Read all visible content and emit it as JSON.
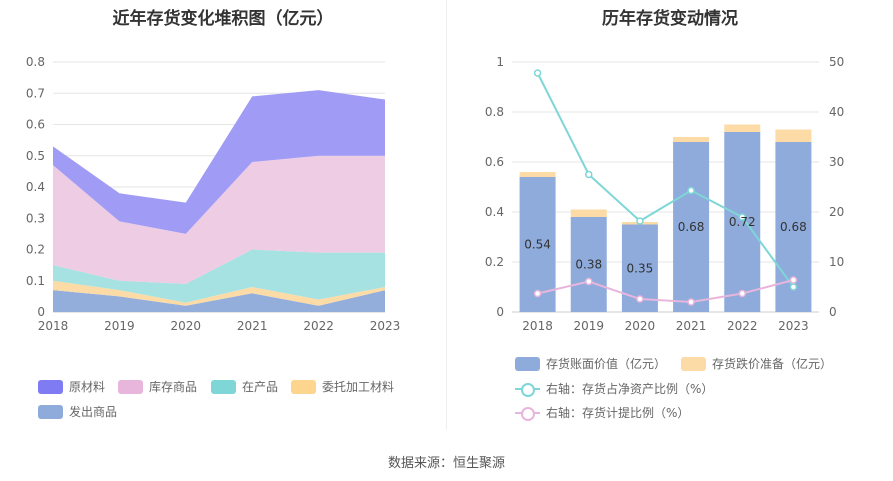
{
  "source_text": "数据来源：恒生聚源",
  "chart_data": [
    {
      "type": "area",
      "stacked": true,
      "title": "近年存货变化堆积图（亿元）",
      "categories": [
        "2018",
        "2019",
        "2020",
        "2021",
        "2022",
        "2023"
      ],
      "ylim": [
        0,
        0.8
      ],
      "yticks": [
        "0",
        "0.1",
        "0.2",
        "0.3",
        "0.4",
        "0.5",
        "0.6",
        "0.7",
        "0.8"
      ],
      "grid": true,
      "legend_position": "bottom",
      "series": [
        {
          "name": "发出商品",
          "color": "#94aedc",
          "values": [
            0.07,
            0.05,
            0.02,
            0.06,
            0.02,
            0.07
          ]
        },
        {
          "name": "委托加工材料",
          "color": "#fcdba6",
          "values": [
            0.03,
            0.02,
            0.01,
            0.02,
            0.02,
            0.01
          ]
        },
        {
          "name": "在产品",
          "color": "#a6e2e2",
          "values": [
            0.05,
            0.03,
            0.06,
            0.12,
            0.15,
            0.11
          ]
        },
        {
          "name": "库存商品",
          "color": "#eecce3",
          "values": [
            0.32,
            0.19,
            0.16,
            0.28,
            0.31,
            0.31
          ]
        },
        {
          "name": "原材料",
          "color": "#a09cf5",
          "values": [
            0.06,
            0.09,
            0.1,
            0.21,
            0.21,
            0.18
          ]
        }
      ],
      "legend": [
        {
          "name": "原材料",
          "color": "#7f7cf3"
        },
        {
          "name": "库存商品",
          "color": "#e8b6dc"
        },
        {
          "name": "在产品",
          "color": "#7ed6d6"
        },
        {
          "name": "委托加工材料",
          "color": "#fdd58f"
        },
        {
          "name": "发出商品",
          "color": "#8eabdc"
        }
      ]
    },
    {
      "type": "bar",
      "stacked": true,
      "title": "历年存货变动情况",
      "categories": [
        "2018",
        "2019",
        "2020",
        "2021",
        "2022",
        "2023"
      ],
      "ylim": [
        0,
        1
      ],
      "yticks": [
        "0",
        "0.2",
        "0.4",
        "0.6",
        "0.8",
        "1"
      ],
      "y2lim": [
        0,
        50
      ],
      "y2ticks": [
        "0",
        "10",
        "20",
        "30",
        "40",
        "50"
      ],
      "grid": true,
      "legend_position": "bottom",
      "series": [
        {
          "name": "存货账面价值（亿元）",
          "color": "#8eabdc",
          "axis": "left",
          "kind": "bar",
          "values": [
            0.54,
            0.38,
            0.35,
            0.68,
            0.72,
            0.68
          ],
          "labels": [
            "0.54",
            "0.38",
            "0.35",
            "0.68",
            "0.72",
            "0.68"
          ]
        },
        {
          "name": "存货跌价准备（亿元）",
          "color": "#fcdba6",
          "axis": "left",
          "kind": "bar",
          "values": [
            0.02,
            0.03,
            0.01,
            0.02,
            0.03,
            0.05
          ]
        },
        {
          "name": "右轴：存货占净资产比例（%）",
          "color": "#7ed6d6",
          "axis": "right",
          "kind": "line",
          "values": [
            47.8,
            27.5,
            18.2,
            24.3,
            19.0,
            5.0
          ]
        },
        {
          "name": "右轴：存货计提比例（%）",
          "color": "#e8b6dc",
          "axis": "right",
          "kind": "line",
          "values": [
            3.7,
            6.1,
            2.6,
            2.0,
            3.7,
            6.4
          ]
        }
      ]
    }
  ]
}
